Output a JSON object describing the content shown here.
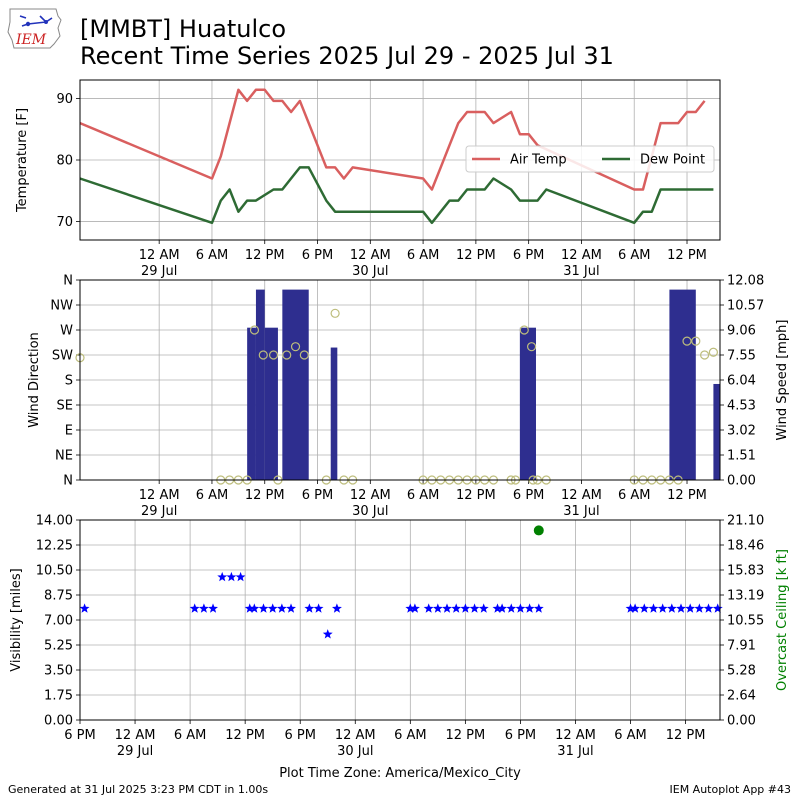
{
  "header": {
    "logo_text": "IEM",
    "title_line1": "[MMBT] Huatulco",
    "title_line2": "Recent Time Series 2025 Jul 29 - 2025 Jul 31"
  },
  "footer": {
    "generated": "Generated at 31 Jul 2025 3:23 PM CDT in 1.00s",
    "app": "IEM Autoplot App #43"
  },
  "colors": {
    "air_temp": "#d95f5f",
    "dew_point": "#2e6b34",
    "wind_bar": "#2e2e8f",
    "gust_marker": "#bdbd7c",
    "visibility": "#0000ff",
    "ceiling": "#008000",
    "grid": "#b0b0b0"
  },
  "chart_data": [
    {
      "type": "line",
      "name": "temperature",
      "ylabel": "Temperature [F]",
      "ylim": [
        67,
        93
      ],
      "yticks": [
        70,
        80,
        90
      ],
      "x_range": [
        "2025-07-28 15:00",
        "2025-07-31 15:45"
      ],
      "x_ticks": [
        {
          "t": "2025-07-29 00:00",
          "label": "12 AM",
          "sub": "29 Jul"
        },
        {
          "t": "2025-07-29 06:00",
          "label": "6 AM"
        },
        {
          "t": "2025-07-29 12:00",
          "label": "12 PM"
        },
        {
          "t": "2025-07-29 18:00",
          "label": "6 PM"
        },
        {
          "t": "2025-07-30 00:00",
          "label": "12 AM",
          "sub": "30 Jul"
        },
        {
          "t": "2025-07-30 06:00",
          "label": "6 AM"
        },
        {
          "t": "2025-07-30 12:00",
          "label": "12 PM"
        },
        {
          "t": "2025-07-30 18:00",
          "label": "6 PM"
        },
        {
          "t": "2025-07-31 00:00",
          "label": "12 AM",
          "sub": "31 Jul"
        },
        {
          "t": "2025-07-31 06:00",
          "label": "6 AM"
        },
        {
          "t": "2025-07-31 12:00",
          "label": "12 PM"
        }
      ],
      "grid": true,
      "legend": "center-right",
      "series": [
        {
          "name": "Air Temp",
          "color": "#d95f5f",
          "points": [
            [
              "2025-07-28 15:00",
              86
            ],
            [
              "2025-07-29 06:00",
              77
            ],
            [
              "2025-07-29 07:00",
              80.6
            ],
            [
              "2025-07-29 09:00",
              91.4
            ],
            [
              "2025-07-29 10:00",
              89.6
            ],
            [
              "2025-07-29 11:00",
              91.4
            ],
            [
              "2025-07-29 12:00",
              91.4
            ],
            [
              "2025-07-29 13:00",
              89.6
            ],
            [
              "2025-07-29 14:00",
              89.6
            ],
            [
              "2025-07-29 15:00",
              87.8
            ],
            [
              "2025-07-29 16:00",
              89.6
            ],
            [
              "2025-07-29 19:00",
              78.8
            ],
            [
              "2025-07-29 20:00",
              78.8
            ],
            [
              "2025-07-29 21:00",
              77
            ],
            [
              "2025-07-29 22:00",
              78.8
            ],
            [
              "2025-07-30 06:00",
              77
            ],
            [
              "2025-07-30 07:00",
              75.2
            ],
            [
              "2025-07-30 08:00",
              78.8
            ],
            [
              "2025-07-30 09:00",
              82.4
            ],
            [
              "2025-07-30 10:00",
              86
            ],
            [
              "2025-07-30 11:00",
              87.8
            ],
            [
              "2025-07-30 13:00",
              87.8
            ],
            [
              "2025-07-30 14:00",
              86
            ],
            [
              "2025-07-30 16:00",
              87.8
            ],
            [
              "2025-07-30 17:00",
              84.2
            ],
            [
              "2025-07-30 18:00",
              84.2
            ],
            [
              "2025-07-30 19:00",
              82.4
            ],
            [
              "2025-07-31 06:00",
              75.2
            ],
            [
              "2025-07-31 07:00",
              75.2
            ],
            [
              "2025-07-31 09:00",
              86
            ],
            [
              "2025-07-31 11:00",
              86
            ],
            [
              "2025-07-31 12:00",
              87.8
            ],
            [
              "2025-07-31 13:00",
              87.8
            ],
            [
              "2025-07-31 14:00",
              89.6
            ]
          ]
        },
        {
          "name": "Dew Point",
          "color": "#2e6b34",
          "points": [
            [
              "2025-07-28 15:00",
              77
            ],
            [
              "2025-07-29 06:00",
              69.8
            ],
            [
              "2025-07-29 07:00",
              73.4
            ],
            [
              "2025-07-29 08:00",
              75.2
            ],
            [
              "2025-07-29 09:00",
              71.6
            ],
            [
              "2025-07-29 10:00",
              73.4
            ],
            [
              "2025-07-29 11:00",
              73.4
            ],
            [
              "2025-07-29 13:00",
              75.2
            ],
            [
              "2025-07-29 14:00",
              75.2
            ],
            [
              "2025-07-29 16:00",
              78.8
            ],
            [
              "2025-07-29 17:00",
              78.8
            ],
            [
              "2025-07-29 19:00",
              73.4
            ],
            [
              "2025-07-29 20:00",
              71.6
            ],
            [
              "2025-07-30 06:00",
              71.6
            ],
            [
              "2025-07-30 07:00",
              69.8
            ],
            [
              "2025-07-30 08:00",
              71.6
            ],
            [
              "2025-07-30 09:00",
              73.4
            ],
            [
              "2025-07-30 10:00",
              73.4
            ],
            [
              "2025-07-30 11:00",
              75.2
            ],
            [
              "2025-07-30 13:00",
              75.2
            ],
            [
              "2025-07-30 14:00",
              77
            ],
            [
              "2025-07-30 16:00",
              75.2
            ],
            [
              "2025-07-30 17:00",
              73.4
            ],
            [
              "2025-07-30 19:00",
              73.4
            ],
            [
              "2025-07-30 20:00",
              75.2
            ],
            [
              "2025-07-31 06:00",
              69.8
            ],
            [
              "2025-07-31 07:00",
              71.6
            ],
            [
              "2025-07-31 08:00",
              71.6
            ],
            [
              "2025-07-31 09:00",
              75.2
            ],
            [
              "2025-07-31 15:00",
              75.2
            ]
          ]
        }
      ]
    },
    {
      "type": "bar",
      "name": "wind",
      "ylabel_left": "Wind Direction",
      "ylabel_right": "Wind Speed [mph]",
      "direction_ticks": [
        "N",
        "NE",
        "E",
        "SE",
        "S",
        "SW",
        "W",
        "NW",
        "N"
      ],
      "direction_ylim": [
        0,
        360
      ],
      "speed_ticks": [
        "0.00",
        "1.51",
        "3.02",
        "4.53",
        "6.04",
        "7.55",
        "9.06",
        "10.57",
        "12.08"
      ],
      "speed_ylim": [
        0,
        12.08
      ],
      "x_range": [
        "2025-07-28 15:00",
        "2025-07-31 15:45"
      ],
      "grid": true,
      "speed_bars": [
        {
          "start": "2025-07-29 10:00",
          "end": "2025-07-29 11:00",
          "mph": 9.2
        },
        {
          "start": "2025-07-29 11:00",
          "end": "2025-07-29 12:00",
          "mph": 11.5
        },
        {
          "start": "2025-07-29 12:00",
          "end": "2025-07-29 13:30",
          "mph": 9.2
        },
        {
          "start": "2025-07-29 14:00",
          "end": "2025-07-29 17:00",
          "mph": 11.5
        },
        {
          "start": "2025-07-29 19:30",
          "end": "2025-07-29 20:15",
          "mph": 8.0
        },
        {
          "start": "2025-07-30 17:00",
          "end": "2025-07-30 18:50",
          "mph": 9.2
        },
        {
          "start": "2025-07-31 10:00",
          "end": "2025-07-31 13:00",
          "mph": 11.5
        },
        {
          "start": "2025-07-31 15:00",
          "end": "2025-07-31 15:45",
          "mph": 5.8
        }
      ],
      "direction_points": [
        [
          "2025-07-28 15:00",
          220
        ],
        [
          "2025-07-29 07:00",
          0
        ],
        [
          "2025-07-29 08:00",
          0
        ],
        [
          "2025-07-29 09:00",
          0
        ],
        [
          "2025-07-29 10:00",
          0
        ],
        [
          "2025-07-29 10:50",
          270
        ],
        [
          "2025-07-29 11:50",
          225
        ],
        [
          "2025-07-29 13:00",
          225
        ],
        [
          "2025-07-29 13:30",
          0
        ],
        [
          "2025-07-29 14:30",
          225
        ],
        [
          "2025-07-29 15:30",
          240
        ],
        [
          "2025-07-29 16:30",
          225
        ],
        [
          "2025-07-29 19:00",
          0
        ],
        [
          "2025-07-29 20:00",
          300
        ],
        [
          "2025-07-29 21:00",
          0
        ],
        [
          "2025-07-29 22:00",
          0
        ],
        [
          "2025-07-30 06:00",
          0
        ],
        [
          "2025-07-30 07:00",
          0
        ],
        [
          "2025-07-30 08:00",
          0
        ],
        [
          "2025-07-30 09:00",
          0
        ],
        [
          "2025-07-30 10:00",
          0
        ],
        [
          "2025-07-30 11:00",
          0
        ],
        [
          "2025-07-30 12:00",
          0
        ],
        [
          "2025-07-30 13:00",
          0
        ],
        [
          "2025-07-30 14:00",
          0
        ],
        [
          "2025-07-30 16:00",
          0
        ],
        [
          "2025-07-30 16:30",
          0
        ],
        [
          "2025-07-30 17:30",
          270
        ],
        [
          "2025-07-30 18:30",
          0
        ],
        [
          "2025-07-30 18:20",
          240
        ],
        [
          "2025-07-30 19:00",
          0
        ],
        [
          "2025-07-30 20:00",
          0
        ],
        [
          "2025-07-31 06:00",
          0
        ],
        [
          "2025-07-31 07:00",
          0
        ],
        [
          "2025-07-31 08:00",
          0
        ],
        [
          "2025-07-31 09:00",
          0
        ],
        [
          "2025-07-31 10:00",
          0
        ],
        [
          "2025-07-31 11:00",
          0
        ],
        [
          "2025-07-31 12:00",
          250
        ],
        [
          "2025-07-31 13:00",
          250
        ],
        [
          "2025-07-31 14:00",
          225
        ],
        [
          "2025-07-31 15:00",
          230
        ]
      ]
    },
    {
      "type": "scatter",
      "name": "visibility",
      "ylabel_left": "Visibility [miles]",
      "ylabel_right": "Overcast Ceiling [k ft]",
      "xlabel": "Plot Time Zone: America/Mexico_City",
      "visibility_ticks": [
        "0.00",
        "1.75",
        "3.50",
        "5.25",
        "7.00",
        "8.75",
        "10.50",
        "12.25",
        "14.00"
      ],
      "visibility_ylim": [
        0,
        14
      ],
      "ceiling_ticks": [
        "0.00",
        "2.64",
        "5.28",
        "7.91",
        "10.55",
        "13.19",
        "15.83",
        "18.46",
        "21.10"
      ],
      "ceiling_ylim": [
        0,
        21.1
      ],
      "x_range": [
        "2025-07-28 18:00",
        "2025-07-31 15:45"
      ],
      "x_ticks": [
        {
          "t": "2025-07-28 18:00",
          "label": "6 PM"
        },
        {
          "t": "2025-07-29 00:00",
          "label": "12 AM",
          "sub": "29 Jul"
        },
        {
          "t": "2025-07-29 06:00",
          "label": "6 AM"
        },
        {
          "t": "2025-07-29 12:00",
          "label": "12 PM"
        },
        {
          "t": "2025-07-29 18:00",
          "label": "6 PM"
        },
        {
          "t": "2025-07-30 00:00",
          "label": "12 AM",
          "sub": "30 Jul"
        },
        {
          "t": "2025-07-30 06:00",
          "label": "6 AM"
        },
        {
          "t": "2025-07-30 12:00",
          "label": "12 PM"
        },
        {
          "t": "2025-07-30 18:00",
          "label": "6 PM"
        },
        {
          "t": "2025-07-31 00:00",
          "label": "12 AM",
          "sub": "31 Jul"
        },
        {
          "t": "2025-07-31 06:00",
          "label": "6 AM"
        },
        {
          "t": "2025-07-31 12:00",
          "label": "12 PM"
        }
      ],
      "grid": true,
      "visibility_points": [
        [
          "2025-07-28 18:30",
          7.8
        ],
        [
          "2025-07-29 06:30",
          7.8
        ],
        [
          "2025-07-29 07:30",
          7.8
        ],
        [
          "2025-07-29 08:30",
          7.8
        ],
        [
          "2025-07-29 09:30",
          10
        ],
        [
          "2025-07-29 10:30",
          10
        ],
        [
          "2025-07-29 11:30",
          10
        ],
        [
          "2025-07-29 12:30",
          7.8
        ],
        [
          "2025-07-29 13:00",
          7.8
        ],
        [
          "2025-07-29 14:00",
          7.8
        ],
        [
          "2025-07-29 15:00",
          7.8
        ],
        [
          "2025-07-29 16:00",
          7.8
        ],
        [
          "2025-07-29 17:00",
          7.8
        ],
        [
          "2025-07-29 19:00",
          7.8
        ],
        [
          "2025-07-29 20:00",
          7.8
        ],
        [
          "2025-07-29 21:00",
          6.0
        ],
        [
          "2025-07-29 22:00",
          7.8
        ],
        [
          "2025-07-30 06:00",
          7.8
        ],
        [
          "2025-07-30 06:30",
          7.8
        ],
        [
          "2025-07-30 08:00",
          7.8
        ],
        [
          "2025-07-30 09:00",
          7.8
        ],
        [
          "2025-07-30 10:00",
          7.8
        ],
        [
          "2025-07-30 11:00",
          7.8
        ],
        [
          "2025-07-30 12:00",
          7.8
        ],
        [
          "2025-07-30 13:00",
          7.8
        ],
        [
          "2025-07-30 14:00",
          7.8
        ],
        [
          "2025-07-30 15:30",
          7.8
        ],
        [
          "2025-07-30 16:00",
          7.8
        ],
        [
          "2025-07-30 17:00",
          7.8
        ],
        [
          "2025-07-30 18:00",
          7.8
        ],
        [
          "2025-07-30 19:00",
          7.8
        ],
        [
          "2025-07-30 20:00",
          7.8
        ],
        [
          "2025-07-31 06:00",
          7.8
        ],
        [
          "2025-07-31 06:30",
          7.8
        ],
        [
          "2025-07-31 07:30",
          7.8
        ],
        [
          "2025-07-31 08:30",
          7.8
        ],
        [
          "2025-07-31 09:30",
          7.8
        ],
        [
          "2025-07-31 10:30",
          7.8
        ],
        [
          "2025-07-31 11:30",
          7.8
        ],
        [
          "2025-07-31 12:30",
          7.8
        ],
        [
          "2025-07-31 13:30",
          7.8
        ],
        [
          "2025-07-31 14:30",
          7.8
        ],
        [
          "2025-07-31 15:30",
          7.8
        ]
      ],
      "ceiling_points": [
        [
          "2025-07-30 20:00",
          20.0
        ]
      ]
    }
  ]
}
